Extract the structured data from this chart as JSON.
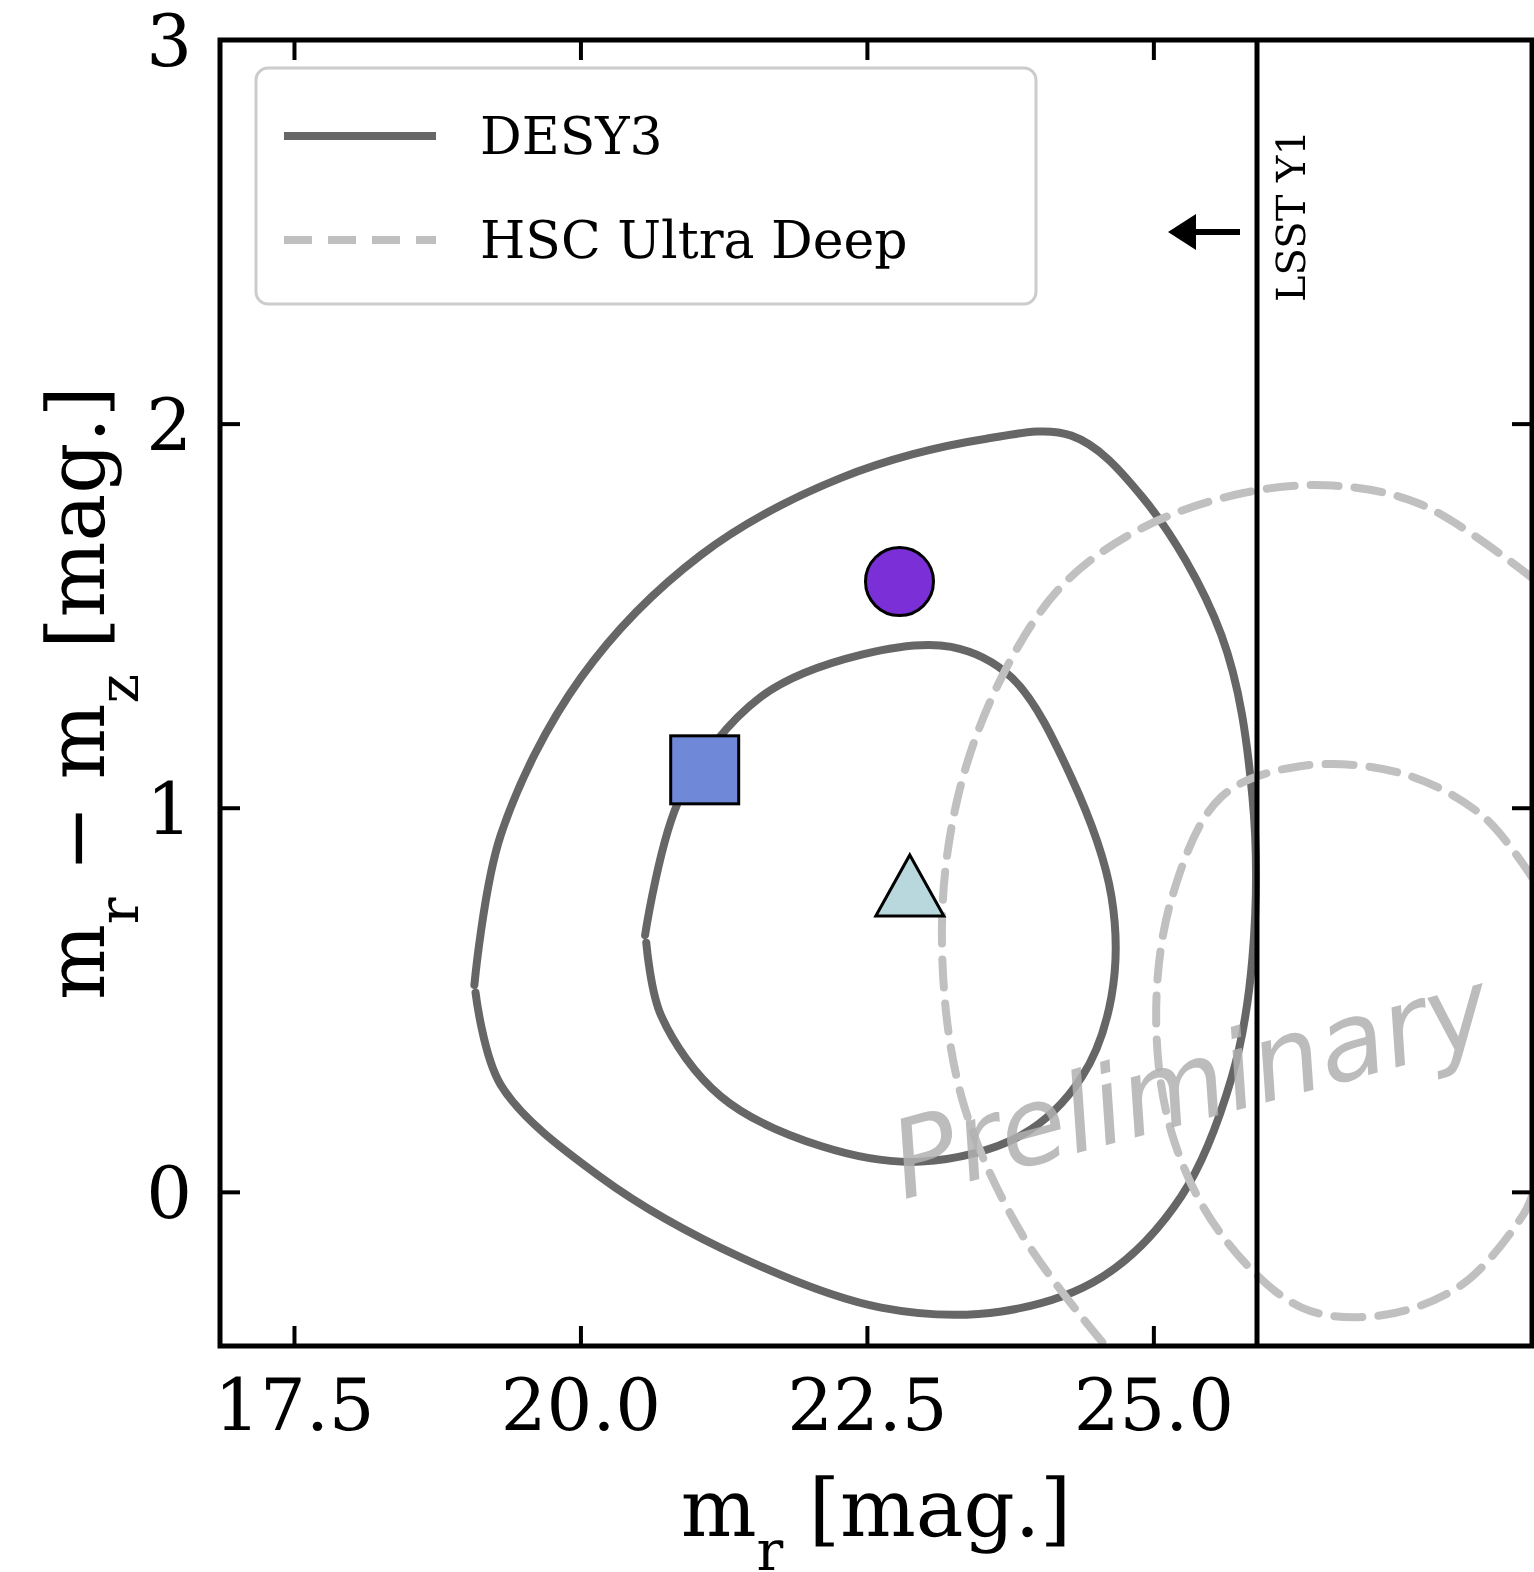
{
  "chart_data": {
    "type": "line",
    "xlabel": "m$_{r}$ [mag.]",
    "ylabel": "m$_{r}$ − m$_{z}$ [mag.]",
    "xlim": [
      16.85,
      28.3
    ],
    "ylim": [
      -0.4,
      3
    ],
    "xticks": [
      17.5,
      {
        "value": 20,
        "label": "20.0"
      },
      22.5,
      {
        "value": 25,
        "label": "25.0"
      }
    ],
    "yticks": [
      0,
      1,
      2,
      3
    ],
    "legend": "top left",
    "grid": false,
    "series": [
      {
        "name": "DESY3",
        "color": "#666666",
        "line_style": "solid",
        "x": [
          19.07,
          19.3,
          20.0,
          21.05,
          22.27,
          23.5,
          24.28,
          24.9,
          25.59,
          25.86,
          25.86,
          25.68,
          25.24,
          24.55,
          23.67,
          22.62,
          21.4,
          20.17,
          19.3,
          19.08
        ],
        "values": [
          0.54,
          0.93,
          1.34,
          1.66,
          1.86,
          1.96,
          1.97,
          1.81,
          1.45,
          1.03,
          0.61,
          0.3,
          -0.01,
          -0.22,
          -0.31,
          -0.3,
          -0.17,
          0.04,
          0.28,
          0.52
        ]
      },
      {
        "color": "#666666",
        "line_style": "solid",
        "x": [
          20.56,
          20.87,
          21.57,
          22.45,
          23.23,
          23.76,
          24.28,
          24.63,
          24.63,
          24.37,
          23.85,
          22.97,
          22.1,
          21.22,
          20.7,
          20.57
        ],
        "values": [
          0.67,
          1.03,
          1.29,
          1.4,
          1.42,
          1.34,
          1.08,
          0.77,
          0.51,
          0.3,
          0.15,
          0.08,
          0.12,
          0.25,
          0.46,
          0.65
        ]
      },
      {
        "name": "HSC Ultra Deep",
        "color": "#c0c0c0",
        "line_style": "dashed",
        "x": [
          24.55,
          23.85,
          23.32,
          23.15,
          23.29,
          23.67,
          24.2,
          24.9,
          25.77,
          26.56,
          27.34,
          28.3
        ],
        "values": [
          -0.39,
          -0.11,
          0.25,
          0.67,
          1.03,
          1.34,
          1.58,
          1.73,
          1.82,
          1.84,
          1.79,
          1.6
        ]
      },
      {
        "color": "#c0c0c0",
        "line_style": "dashed",
        "x": [
          28.3,
          27.87,
          27.17,
          26.29,
          25.59,
          25.16,
          25.02,
          25.16,
          25.59,
          26.29,
          26.99,
          27.69,
          28.22,
          28.3
        ],
        "values": [
          0.82,
          0.98,
          1.09,
          1.11,
          1.03,
          0.77,
          0.46,
          0.15,
          -0.11,
          -0.3,
          -0.32,
          -0.24,
          -0.06,
          -0.01
        ]
      },
      {
        "type": "scatter",
        "marker": "circle",
        "color": "#7b2fd6",
        "x": [
          22.78
        ],
        "values": [
          1.59
        ]
      },
      {
        "type": "scatter",
        "marker": "square",
        "color": "#7088d8",
        "x": [
          21.08
        ],
        "values": [
          1.1
        ]
      },
      {
        "type": "scatter",
        "marker": "triangle",
        "color": "#b8d8de",
        "x": [
          22.87
        ],
        "values": [
          0.79
        ]
      }
    ],
    "ref_lines": [
      {
        "axis": "x",
        "value": 25.9,
        "label": "LSST Y1",
        "color": "#000000",
        "line_style": "solid"
      }
    ],
    "annotations": [
      "Preliminary"
    ]
  }
}
